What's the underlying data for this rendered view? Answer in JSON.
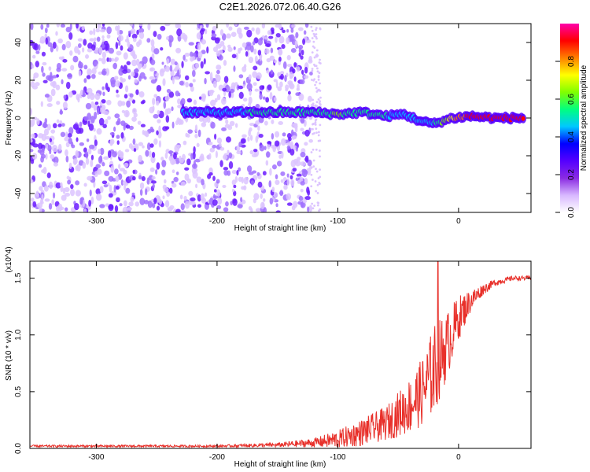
{
  "title": "C2E1.2026.072.06.40.G26",
  "chart_data": [
    {
      "type": "heatmap",
      "xlabel": "Height of straight line (km)",
      "ylabel": "Frequency (Hz)",
      "xlim": [
        -355,
        60
      ],
      "ylim": [
        -50,
        50
      ],
      "xticks": [
        -300,
        -200,
        -100,
        0
      ],
      "xtick_labels": [
        "-300",
        "-200",
        "-100",
        "0"
      ],
      "yticks": [
        -40,
        -20,
        0,
        20,
        40
      ],
      "ytick_labels": [
        "-40",
        "-20",
        "0",
        "20",
        "40"
      ],
      "colorbar": {
        "label": "Normalized spectral amplitude",
        "range": [
          0,
          1
        ],
        "ticks": [
          0.0,
          0.2,
          0.4,
          0.6,
          0.8
        ],
        "tick_labels": [
          "0.0",
          "0.2",
          "0.4",
          "0.6",
          "0.8"
        ],
        "colors": [
          "#ffffff",
          "#d8b8ff",
          "#8a2be2",
          "#5500ff",
          "#0000ff",
          "#00c8ff",
          "#00ff80",
          "#80ff00",
          "#ffff00",
          "#ff8000",
          "#ff0000",
          "#ff00aa"
        ]
      },
      "noise_region_x": [
        -355,
        -122
      ],
      "track": [
        {
          "x": -228,
          "y": 3,
          "level": 0.45
        },
        {
          "x": -120,
          "y": 3,
          "level": 0.55
        },
        {
          "x": -100,
          "y": 2,
          "level": 0.6
        },
        {
          "x": -80,
          "y": 3,
          "level": 0.55
        },
        {
          "x": -60,
          "y": 1,
          "level": 0.5
        },
        {
          "x": -45,
          "y": 2,
          "level": 0.45
        },
        {
          "x": -30,
          "y": -2,
          "level": 0.45
        },
        {
          "x": -20,
          "y": -3,
          "level": 0.5
        },
        {
          "x": -5,
          "y": 0,
          "level": 0.75
        },
        {
          "x": 10,
          "y": 1,
          "level": 0.9
        },
        {
          "x": 30,
          "y": 0,
          "level": 0.95
        },
        {
          "x": 55,
          "y": 0,
          "level": 0.95
        }
      ]
    },
    {
      "type": "line",
      "xlabel": "Height of straight line (km)",
      "ylabel": "SNR (10 * v/v)",
      "yscale_label": "(x10^4)",
      "xlim": [
        -355,
        60
      ],
      "ylim": [
        0,
        1.65
      ],
      "xticks": [
        -300,
        -200,
        -100,
        0
      ],
      "xtick_labels": [
        "-300",
        "-200",
        "-100",
        "0"
      ],
      "yticks": [
        0.0,
        0.5,
        1.0,
        1.5
      ],
      "ytick_labels": [
        "0.0",
        "0.5",
        "1.0",
        "1.5"
      ],
      "series": [
        {
          "color": "#e8302a",
          "x": [
            -355,
            -300,
            -250,
            -200,
            -150,
            -120,
            -100,
            -80,
            -60,
            -40,
            -30,
            -20,
            -10,
            0,
            10,
            20,
            30,
            45,
            60
          ],
          "y": [
            0.02,
            0.02,
            0.02,
            0.02,
            0.03,
            0.05,
            0.08,
            0.14,
            0.22,
            0.38,
            0.5,
            0.7,
            0.9,
            1.15,
            1.3,
            1.4,
            1.46,
            1.5,
            1.5
          ],
          "spread": [
            0.01,
            0.01,
            0.01,
            0.01,
            0.02,
            0.04,
            0.08,
            0.12,
            0.15,
            0.25,
            0.3,
            0.4,
            0.3,
            0.2,
            0.1,
            0.05,
            0.03,
            0.02,
            0.02
          ],
          "peak": {
            "x": -17,
            "y": 1.65
          }
        }
      ]
    }
  ]
}
